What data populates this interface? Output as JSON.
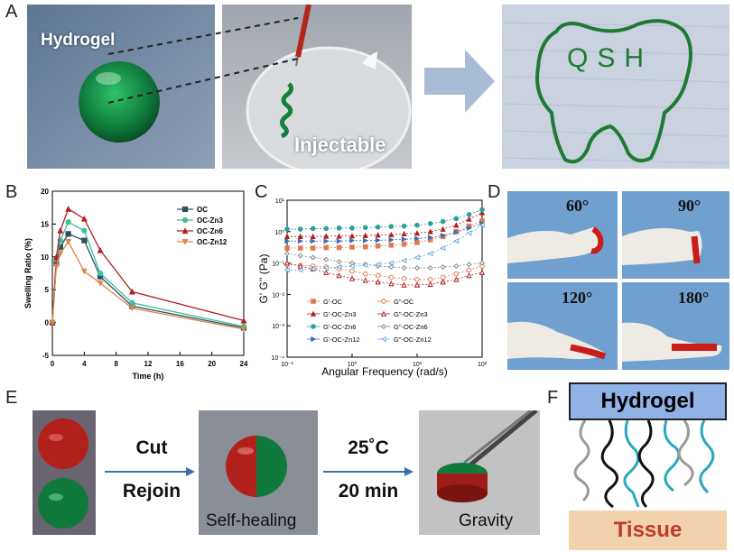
{
  "panels": {
    "A": {
      "label": "A",
      "hydrogel_text": "Hydrogel",
      "injectable_text": "Injectable",
      "written_text": "QSH"
    },
    "B": {
      "label": "B"
    },
    "C": {
      "label": "C"
    },
    "D": {
      "label": "D",
      "angles": [
        "60°",
        "90°",
        "120°",
        "180°"
      ]
    },
    "E": {
      "label": "E",
      "step1_line1": "Cut",
      "step1_line2": "Rejoin",
      "step2_line1": "25˚C",
      "step2_line2": "20 min",
      "self_healing_text": "Self-healing",
      "gravity_text": "Gravity"
    },
    "F": {
      "label": "F",
      "top_text": "Hydrogel",
      "bottom_text": "Tissue"
    }
  },
  "chart_data": [
    {
      "type": "line",
      "panel": "B",
      "xlabel": "Time (h)",
      "ylabel": "Swelling Ratio (%)",
      "xlim": [
        0,
        24
      ],
      "ylim": [
        -5,
        20
      ],
      "xticks": [
        "0",
        "4",
        "8",
        "12",
        "16",
        "20",
        "24"
      ],
      "yticks": [
        "-5",
        "0",
        "5",
        "10",
        "15",
        "20"
      ],
      "x": [
        0,
        0.5,
        1,
        2,
        4,
        6,
        10,
        24
      ],
      "series": [
        {
          "name": "OC",
          "color": "#2f4f5f",
          "marker": "square",
          "values": [
            0,
            9,
            11.5,
            13.5,
            12.5,
            7,
            2.5,
            -0.8
          ]
        },
        {
          "name": "OC-Zn3",
          "color": "#3fbf9a",
          "marker": "circle",
          "values": [
            0,
            9.5,
            12.5,
            15.3,
            14,
            7.5,
            3,
            -0.6
          ]
        },
        {
          "name": "OC-Zn6",
          "color": "#b22020",
          "marker": "triangle",
          "values": [
            0,
            10,
            14,
            17.3,
            15.8,
            11,
            4.7,
            0.3
          ]
        },
        {
          "name": "OC-Zn12",
          "color": "#d9874a",
          "marker": "triangle-down",
          "values": [
            0,
            8.5,
            10.5,
            12.3,
            7.8,
            6,
            2.2,
            -1
          ]
        }
      ],
      "grid": false,
      "legend_position": "top-right"
    },
    {
      "type": "scatter",
      "panel": "C",
      "xlabel": "Angular Frequency (rad/s)",
      "ylabel": "G' G'' (Pa)",
      "xscale": "log",
      "yscale": "log",
      "xlim": [
        0.1,
        100
      ],
      "ylim": [
        0.0001,
        10
      ],
      "xticks": [
        "10⁻¹",
        "10⁰",
        "10¹",
        "10²"
      ],
      "yticks": [
        "10⁻⁴",
        "10⁻³",
        "10⁻²",
        "10⁻¹",
        "10⁰",
        "10¹"
      ],
      "x": [
        0.1,
        0.16,
        0.25,
        0.4,
        0.63,
        1,
        1.6,
        2.5,
        4,
        6.3,
        10,
        16,
        25,
        40,
        63,
        100
      ],
      "series": [
        {
          "name": "G'-OC",
          "color": "#e07a50",
          "filled": true,
          "marker": "square",
          "values": [
            0.3,
            0.3,
            0.3,
            0.31,
            0.31,
            0.32,
            0.33,
            0.35,
            0.37,
            0.4,
            0.45,
            0.55,
            0.7,
            1,
            1.5,
            2.2
          ]
        },
        {
          "name": "G\"-OC",
          "color": "#e07a50",
          "filled": false,
          "marker": "circle",
          "values": [
            0.09,
            0.085,
            0.08,
            0.075,
            0.065,
            0.055,
            0.045,
            0.04,
            0.035,
            0.032,
            0.03,
            0.03,
            0.035,
            0.045,
            0.06,
            0.08
          ]
        },
        {
          "name": "G'-OC-Zn3",
          "color": "#b22020",
          "filled": true,
          "marker": "triangle",
          "values": [
            0.7,
            0.7,
            0.7,
            0.72,
            0.72,
            0.73,
            0.75,
            0.78,
            0.8,
            0.85,
            0.9,
            1,
            1.2,
            1.6,
            2.5,
            4
          ]
        },
        {
          "name": "G\"-OC-Zn3",
          "color": "#b22020",
          "filled": false,
          "marker": "triangle",
          "values": [
            0.1,
            0.08,
            0.065,
            0.05,
            0.04,
            0.032,
            0.028,
            0.025,
            0.022,
            0.02,
            0.02,
            0.021,
            0.025,
            0.03,
            0.04,
            0.05
          ]
        },
        {
          "name": "G'-OC-Zn6",
          "color": "#2aa0a0",
          "filled": true,
          "marker": "circle",
          "values": [
            1.2,
            1.2,
            1.25,
            1.25,
            1.3,
            1.3,
            1.35,
            1.4,
            1.45,
            1.5,
            1.6,
            1.8,
            2.1,
            2.6,
            3.5,
            5
          ]
        },
        {
          "name": "G\"-OC-Zn6",
          "color": "#888888",
          "filled": false,
          "marker": "diamond",
          "values": [
            0.2,
            0.17,
            0.15,
            0.13,
            0.11,
            0.1,
            0.09,
            0.08,
            0.075,
            0.07,
            0.07,
            0.07,
            0.075,
            0.08,
            0.09,
            0.1
          ]
        },
        {
          "name": "G'-OC-Zn12",
          "color": "#3a6fb0",
          "filled": true,
          "marker": "right-triangle",
          "values": [
            0.5,
            0.5,
            0.5,
            0.5,
            0.5,
            0.52,
            0.52,
            0.53,
            0.55,
            0.57,
            0.6,
            0.65,
            0.75,
            0.95,
            1.3,
            1.8
          ]
        },
        {
          "name": "G\"-OC-Zn12",
          "color": "#6fa8dc",
          "filled": false,
          "marker": "left-triangle",
          "values": [
            0.06,
            0.06,
            0.065,
            0.07,
            0.075,
            0.08,
            0.085,
            0.09,
            0.1,
            0.12,
            0.15,
            0.2,
            0.3,
            0.5,
            0.9,
            1.6
          ]
        }
      ],
      "legend_position": "bottom-center",
      "grid": false
    }
  ]
}
